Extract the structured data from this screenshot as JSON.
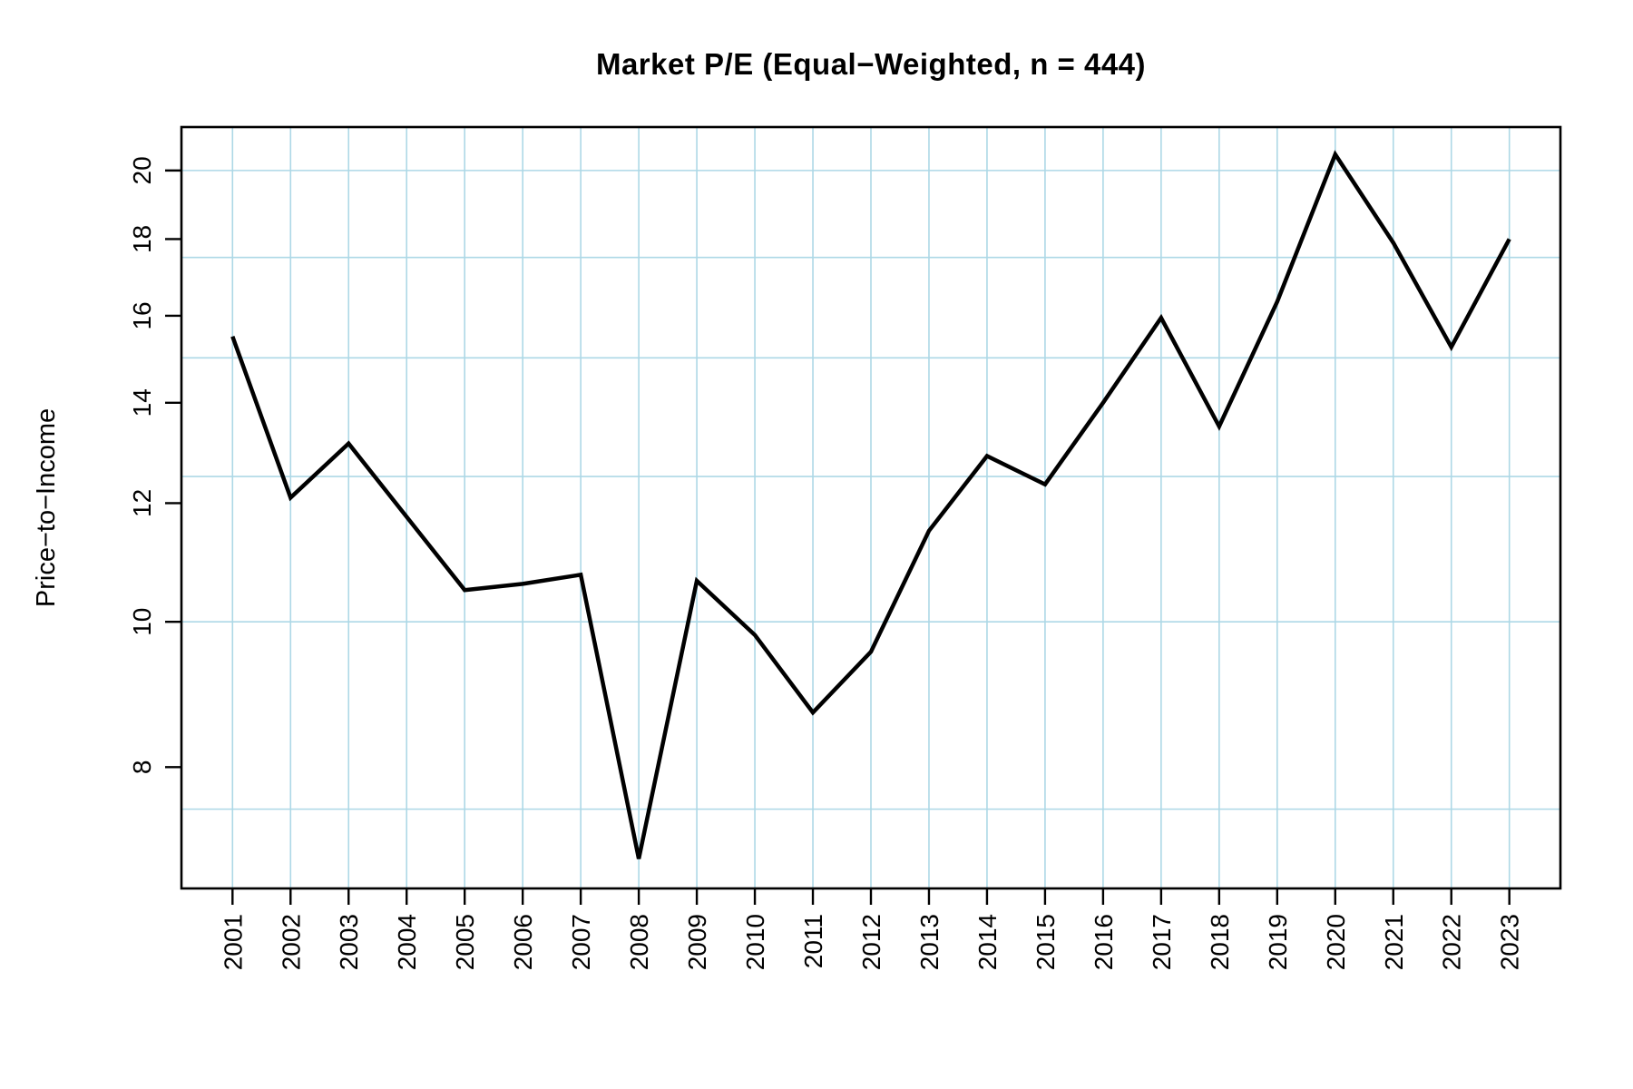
{
  "title": "Market P/E (Equal−Weighted, n = 444)",
  "chart_data": {
    "type": "line",
    "title": "Market P/E (Equal−Weighted, n = 444)",
    "xlabel": "",
    "ylabel": "Price−to−Income",
    "x": [
      2001,
      2002,
      2003,
      2004,
      2005,
      2006,
      2007,
      2008,
      2009,
      2010,
      2011,
      2012,
      2013,
      2014,
      2015,
      2016,
      2017,
      2018,
      2019,
      2020,
      2021,
      2022,
      2023
    ],
    "series": [
      {
        "name": "Market P/E (equal-weighted)",
        "values": [
          15.5,
          12.1,
          13.15,
          11.75,
          10.5,
          10.6,
          10.75,
          6.95,
          10.65,
          9.8,
          8.7,
          9.55,
          11.5,
          12.9,
          12.35,
          14.0,
          15.95,
          13.5,
          16.35,
          20.5,
          17.9,
          15.25,
          18.0
        ]
      }
    ],
    "n_points": 23,
    "y_scale": "log",
    "ylim": [
      6.64,
      21.38
    ],
    "xlim": [
      2000.12,
      2023.88
    ],
    "y_ticks": [
      8,
      10,
      12,
      14,
      16,
      18,
      20
    ],
    "x_ticks": [
      "2001",
      "2002",
      "2003",
      "2004",
      "2005",
      "2006",
      "2007",
      "2008",
      "2009",
      "2010",
      "2011",
      "2012",
      "2013",
      "2014",
      "2015",
      "2016",
      "2017",
      "2018",
      "2019",
      "2020",
      "2021",
      "2022",
      "2023"
    ],
    "grid": true,
    "grid_y_values": [
      7.5,
      10,
      12.5,
      15,
      17.5,
      20
    ],
    "grid_x_at_every_year": true,
    "legend": "none",
    "colors": {
      "line": "#000000",
      "grid": "#ADD8E6",
      "axis": "#000000",
      "background": "#ffffff",
      "title": "#000000"
    }
  }
}
